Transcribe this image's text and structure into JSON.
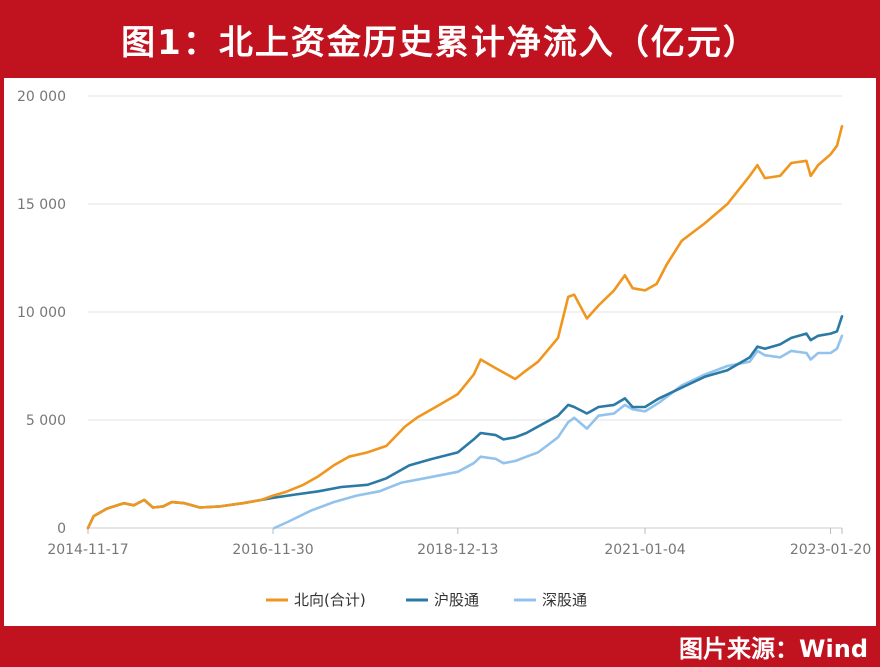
{
  "header": {
    "title": "图1：北上资金历史累计净流入（亿元）"
  },
  "footer": {
    "source": "图片来源：Wind"
  },
  "colors": {
    "frame": "#c1121f",
    "northbound": "#f0961e",
    "shanghai": "#2b7aa6",
    "shenzhen": "#93c3ec",
    "grid": "#e3e3e3",
    "axis_text": "#777777"
  },
  "chart_data": {
    "type": "line",
    "title": "图1：北上资金历史累计净流入（亿元）",
    "xlabel": "",
    "ylabel": "",
    "ylim": [
      0,
      20000
    ],
    "yticks": [
      0,
      5000,
      10000,
      15000,
      20000
    ],
    "ytick_labels": [
      "0",
      "5 000",
      "10 000",
      "15 000",
      "20 000"
    ],
    "xtick_labels": [
      "2014-11-17",
      "2016-11-30",
      "2018-12-13",
      "2021-01-04",
      "2023-01-20"
    ],
    "xtick_dates": [
      "2014-11-17",
      "2016-11-30",
      "2018-12-13",
      "2021-01-04",
      "2023-01-20"
    ],
    "xlim": [
      "2014-11-17",
      "2023-03-07"
    ],
    "grid": true,
    "legend_position": "bottom",
    "series": [
      {
        "name": "北向(合计)",
        "points": [
          [
            "2014-11-17",
            0
          ],
          [
            "2014-12-10",
            550
          ],
          [
            "2015-02-01",
            900
          ],
          [
            "2015-04-10",
            1150
          ],
          [
            "2015-05-20",
            1050
          ],
          [
            "2015-07-01",
            1300
          ],
          [
            "2015-08-05",
            950
          ],
          [
            "2015-09-15",
            1000
          ],
          [
            "2015-10-20",
            1200
          ],
          [
            "2015-12-10",
            1150
          ],
          [
            "2016-02-10",
            950
          ],
          [
            "2016-05-01",
            1000
          ],
          [
            "2016-08-01",
            1150
          ],
          [
            "2016-10-15",
            1300
          ],
          [
            "2016-11-30",
            1500
          ],
          [
            "2017-01-15",
            1650
          ],
          [
            "2017-04-01",
            2000
          ],
          [
            "2017-06-01",
            2400
          ],
          [
            "2017-08-01",
            2900
          ],
          [
            "2017-10-01",
            3300
          ],
          [
            "2017-12-15",
            3500
          ],
          [
            "2018-03-01",
            3800
          ],
          [
            "2018-05-15",
            4700
          ],
          [
            "2018-07-01",
            5100
          ],
          [
            "2018-09-15",
            5600
          ],
          [
            "2018-12-13",
            6200
          ],
          [
            "2019-02-15",
            7100
          ],
          [
            "2019-03-15",
            7800
          ],
          [
            "2019-05-15",
            7400
          ],
          [
            "2019-06-15",
            7200
          ],
          [
            "2019-08-01",
            6900
          ],
          [
            "2019-09-15",
            7300
          ],
          [
            "2019-11-01",
            7700
          ],
          [
            "2020-01-20",
            8800
          ],
          [
            "2020-03-01",
            10700
          ],
          [
            "2020-03-25",
            10800
          ],
          [
            "2020-05-15",
            9700
          ],
          [
            "2020-07-01",
            10300
          ],
          [
            "2020-09-01",
            11000
          ],
          [
            "2020-10-15",
            11700
          ],
          [
            "2020-11-15",
            11100
          ],
          [
            "2021-01-04",
            11000
          ],
          [
            "2021-02-20",
            11300
          ],
          [
            "2021-04-01",
            12200
          ],
          [
            "2021-06-01",
            13300
          ],
          [
            "2021-09-01",
            14100
          ],
          [
            "2021-12-01",
            15000
          ],
          [
            "2022-03-01",
            16300
          ],
          [
            "2022-04-01",
            16800
          ],
          [
            "2022-05-01",
            16200
          ],
          [
            "2022-07-01",
            16300
          ],
          [
            "2022-08-15",
            16900
          ],
          [
            "2022-10-15",
            17000
          ],
          [
            "2022-11-01",
            16300
          ],
          [
            "2022-12-01",
            16800
          ],
          [
            "2023-01-20",
            17300
          ],
          [
            "2023-02-15",
            17700
          ],
          [
            "2023-03-07",
            18600
          ]
        ]
      },
      {
        "name": "沪股通",
        "points": [
          [
            "2014-11-17",
            0
          ],
          [
            "2014-12-10",
            550
          ],
          [
            "2015-02-01",
            900
          ],
          [
            "2015-04-10",
            1150
          ],
          [
            "2015-05-20",
            1050
          ],
          [
            "2015-07-01",
            1300
          ],
          [
            "2015-08-05",
            950
          ],
          [
            "2015-09-15",
            1000
          ],
          [
            "2015-10-20",
            1200
          ],
          [
            "2015-12-10",
            1150
          ],
          [
            "2016-02-10",
            950
          ],
          [
            "2016-05-01",
            1000
          ],
          [
            "2016-08-01",
            1150
          ],
          [
            "2016-10-15",
            1300
          ],
          [
            "2016-11-30",
            1400
          ],
          [
            "2017-03-01",
            1550
          ],
          [
            "2017-06-01",
            1700
          ],
          [
            "2017-09-01",
            1900
          ],
          [
            "2017-12-15",
            2000
          ],
          [
            "2018-03-01",
            2300
          ],
          [
            "2018-06-01",
            2900
          ],
          [
            "2018-09-01",
            3200
          ],
          [
            "2018-12-13",
            3500
          ],
          [
            "2019-02-15",
            4100
          ],
          [
            "2019-03-15",
            4400
          ],
          [
            "2019-05-15",
            4300
          ],
          [
            "2019-06-15",
            4100
          ],
          [
            "2019-08-01",
            4200
          ],
          [
            "2019-09-15",
            4400
          ],
          [
            "2019-11-01",
            4700
          ],
          [
            "2020-01-20",
            5200
          ],
          [
            "2020-03-01",
            5700
          ],
          [
            "2020-03-25",
            5600
          ],
          [
            "2020-05-15",
            5300
          ],
          [
            "2020-07-01",
            5600
          ],
          [
            "2020-09-01",
            5700
          ],
          [
            "2020-10-15",
            6000
          ],
          [
            "2020-11-15",
            5600
          ],
          [
            "2021-01-04",
            5600
          ],
          [
            "2021-03-01",
            6000
          ],
          [
            "2021-06-01",
            6500
          ],
          [
            "2021-09-01",
            7000
          ],
          [
            "2021-12-01",
            7300
          ],
          [
            "2022-03-01",
            7900
          ],
          [
            "2022-04-01",
            8400
          ],
          [
            "2022-05-01",
            8300
          ],
          [
            "2022-07-01",
            8500
          ],
          [
            "2022-08-15",
            8800
          ],
          [
            "2022-10-15",
            9000
          ],
          [
            "2022-11-01",
            8700
          ],
          [
            "2022-12-01",
            8900
          ],
          [
            "2023-01-20",
            9000
          ],
          [
            "2023-02-15",
            9100
          ],
          [
            "2023-03-07",
            9800
          ]
        ]
      },
      {
        "name": "深股通",
        "points": [
          [
            "2016-12-05",
            0
          ],
          [
            "2017-02-01",
            300
          ],
          [
            "2017-05-01",
            800
          ],
          [
            "2017-08-01",
            1200
          ],
          [
            "2017-11-01",
            1500
          ],
          [
            "2018-02-01",
            1700
          ],
          [
            "2018-05-01",
            2100
          ],
          [
            "2018-08-01",
            2300
          ],
          [
            "2018-12-13",
            2600
          ],
          [
            "2019-02-15",
            3000
          ],
          [
            "2019-03-15",
            3300
          ],
          [
            "2019-05-15",
            3200
          ],
          [
            "2019-06-15",
            3000
          ],
          [
            "2019-08-01",
            3100
          ],
          [
            "2019-09-15",
            3300
          ],
          [
            "2019-11-01",
            3500
          ],
          [
            "2020-01-20",
            4200
          ],
          [
            "2020-03-01",
            4900
          ],
          [
            "2020-03-25",
            5100
          ],
          [
            "2020-05-15",
            4600
          ],
          [
            "2020-07-01",
            5200
          ],
          [
            "2020-09-01",
            5300
          ],
          [
            "2020-10-15",
            5700
          ],
          [
            "2020-11-15",
            5500
          ],
          [
            "2021-01-04",
            5400
          ],
          [
            "2021-03-01",
            5800
          ],
          [
            "2021-06-01",
            6600
          ],
          [
            "2021-09-01",
            7100
          ],
          [
            "2021-12-01",
            7500
          ],
          [
            "2022-03-01",
            7700
          ],
          [
            "2022-04-01",
            8200
          ],
          [
            "2022-05-01",
            8000
          ],
          [
            "2022-07-01",
            7900
          ],
          [
            "2022-08-15",
            8200
          ],
          [
            "2022-10-15",
            8100
          ],
          [
            "2022-11-01",
            7800
          ],
          [
            "2022-12-01",
            8100
          ],
          [
            "2023-01-20",
            8100
          ],
          [
            "2023-02-15",
            8300
          ],
          [
            "2023-03-07",
            8900
          ]
        ]
      }
    ]
  }
}
